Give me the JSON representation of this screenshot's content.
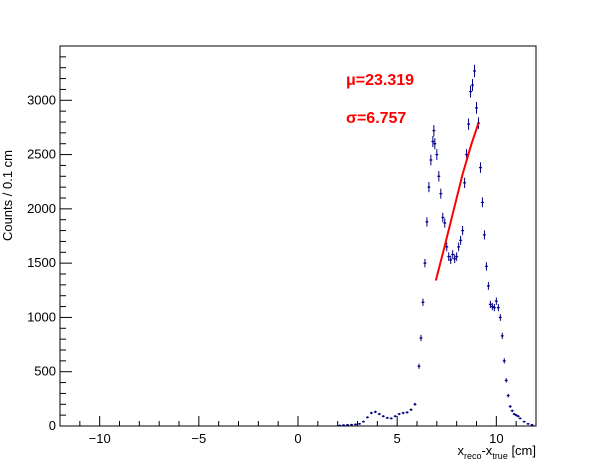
{
  "chart_data": {
    "type": "scatter",
    "xlabel": {
      "base": "x",
      "sub1": "reco",
      "mid": "-x",
      "sub2": "true",
      "unit": " [cm]"
    },
    "ylabel": "Counts / 0.1 cm",
    "xlim": [
      -12,
      12
    ],
    "ylim": [
      0,
      3500
    ],
    "x_ticks": [
      -10,
      -5,
      0,
      5,
      10
    ],
    "x_tick_labels": [
      "−10",
      "−5",
      "0",
      "5",
      "10"
    ],
    "y_ticks": [
      0,
      500,
      1000,
      1500,
      2000,
      2500,
      3000
    ],
    "y_tick_labels": [
      "0",
      "500",
      "1000",
      "1500",
      "2000",
      "2500",
      "3000"
    ],
    "grid": false,
    "series": [
      {
        "marker_color": "#000080",
        "points": [
          [
            2.1,
            5
          ],
          [
            2.3,
            8
          ],
          [
            2.5,
            10
          ],
          [
            2.7,
            12
          ],
          [
            2.9,
            15
          ],
          [
            3.1,
            20
          ],
          [
            3.3,
            40
          ],
          [
            3.5,
            80
          ],
          [
            3.7,
            120
          ],
          [
            3.9,
            130
          ],
          [
            4.1,
            110
          ],
          [
            4.3,
            90
          ],
          [
            4.5,
            75
          ],
          [
            4.7,
            70
          ],
          [
            4.9,
            90
          ],
          [
            5.1,
            110
          ],
          [
            5.3,
            120
          ],
          [
            5.5,
            125
          ],
          [
            5.7,
            150
          ],
          [
            5.9,
            200
          ],
          [
            6.1,
            550
          ],
          [
            6.2,
            810
          ],
          [
            6.3,
            1140
          ],
          [
            6.4,
            1500
          ],
          [
            6.5,
            1880
          ],
          [
            6.6,
            2200
          ],
          [
            6.7,
            2450
          ],
          [
            6.8,
            2620
          ],
          [
            6.85,
            2720
          ],
          [
            6.9,
            2600
          ],
          [
            7.0,
            2500
          ],
          [
            7.1,
            2300
          ],
          [
            7.2,
            2140
          ],
          [
            7.3,
            1920
          ],
          [
            7.4,
            1870
          ],
          [
            7.5,
            1650
          ],
          [
            7.6,
            1560
          ],
          [
            7.7,
            1530
          ],
          [
            7.8,
            1580
          ],
          [
            7.9,
            1540
          ],
          [
            8.0,
            1560
          ],
          [
            8.1,
            1650
          ],
          [
            8.2,
            1710
          ],
          [
            8.3,
            1800
          ],
          [
            8.4,
            2240
          ],
          [
            8.5,
            2500
          ],
          [
            8.6,
            2780
          ],
          [
            8.7,
            3080
          ],
          [
            8.8,
            3140
          ],
          [
            8.9,
            3270
          ],
          [
            9.0,
            2930
          ],
          [
            9.1,
            2790
          ],
          [
            9.2,
            2380
          ],
          [
            9.3,
            2060
          ],
          [
            9.4,
            1760
          ],
          [
            9.5,
            1470
          ],
          [
            9.6,
            1290
          ],
          [
            9.7,
            1120
          ],
          [
            9.8,
            1100
          ],
          [
            9.9,
            1090
          ],
          [
            10.0,
            1150
          ],
          [
            10.1,
            1090
          ],
          [
            10.2,
            1000
          ],
          [
            10.3,
            830
          ],
          [
            10.4,
            600
          ],
          [
            10.5,
            420
          ],
          [
            10.6,
            280
          ],
          [
            10.7,
            180
          ],
          [
            10.8,
            140
          ],
          [
            10.9,
            110
          ],
          [
            11.0,
            100
          ],
          [
            11.1,
            90
          ],
          [
            11.2,
            70
          ],
          [
            11.4,
            40
          ],
          [
            11.6,
            20
          ],
          [
            11.8,
            10
          ]
        ]
      }
    ],
    "fit": {
      "color": "#ff0000",
      "x": [
        6.95,
        7.4,
        7.85,
        8.3,
        8.75,
        9.1
      ],
      "y": [
        1340,
        1660,
        1990,
        2320,
        2600,
        2790
      ]
    },
    "annotations": {
      "mu": "μ=23.319",
      "sigma": "σ=6.757"
    }
  }
}
